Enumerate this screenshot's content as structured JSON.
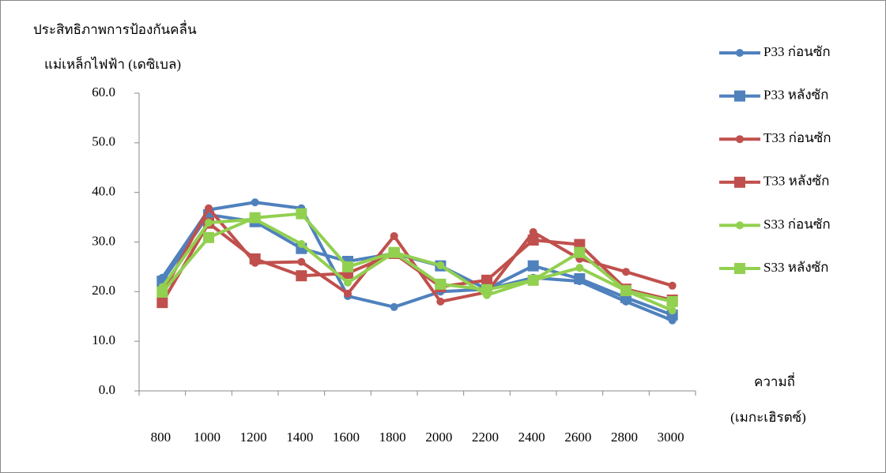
{
  "chart_data": {
    "type": "line",
    "ylabel": [
      "ประสิทธิภาพการป้องกันคลื่น",
      "แม่เหล็กไฟฟ้า (เดซิเบล)"
    ],
    "xlabel": [
      "ความถี่",
      "(เมกะเฮิรตซ์)"
    ],
    "categories": [
      "800",
      "1000",
      "1200",
      "1400",
      "1600",
      "1800",
      "2000",
      "2200",
      "2400",
      "2600",
      "2800",
      "3000"
    ],
    "ylim": [
      0,
      60
    ],
    "yticks": [
      {
        "value": 0,
        "label": "0.0"
      },
      {
        "value": 10,
        "label": "10.0"
      },
      {
        "value": 20,
        "label": "20.0"
      },
      {
        "value": 30,
        "label": "30.0"
      },
      {
        "value": 40,
        "label": "40.0"
      },
      {
        "value": 50,
        "label": "50.0"
      },
      {
        "value": 60,
        "label": "60.0"
      }
    ],
    "grid": false,
    "legend": "right",
    "series": [
      {
        "name": "P33 ก่อนซัก",
        "color": "#4f81bd",
        "marker": "circle",
        "values": [
          22.8,
          36.5,
          38.0,
          36.8,
          19.1,
          16.9,
          20.0,
          20.5,
          22.8,
          22.1,
          18.0,
          14.2
        ]
      },
      {
        "name": "P33 หลังซัก",
        "color": "#4f81bd",
        "marker": "square",
        "values": [
          22.1,
          35.5,
          34.1,
          28.7,
          26.1,
          27.7,
          25.2,
          20.5,
          25.2,
          22.6,
          18.8,
          15.3
        ]
      },
      {
        "name": "T33 ก่อนซัก",
        "color": "#c0504d",
        "marker": "circle",
        "values": [
          19.6,
          36.8,
          25.8,
          26.0,
          19.6,
          31.2,
          18.0,
          19.9,
          32.0,
          26.6,
          24.0,
          21.2
        ]
      },
      {
        "name": "T33 หลังซัก",
        "color": "#c0504d",
        "marker": "square",
        "values": [
          17.8,
          33.8,
          26.6,
          23.2,
          23.7,
          27.7,
          21.0,
          22.3,
          30.4,
          29.5,
          20.5,
          18.3
        ]
      },
      {
        "name": "S33 ก่อนซัก",
        "color": "#92d050",
        "marker": "circle",
        "values": [
          20.9,
          33.9,
          34.6,
          29.6,
          21.8,
          27.9,
          25.3,
          19.3,
          22.3,
          24.8,
          20.2,
          16.2
        ]
      },
      {
        "name": "S33 หลังซัก",
        "color": "#92d050",
        "marker": "square",
        "values": [
          19.9,
          30.9,
          34.9,
          35.7,
          25.0,
          27.9,
          21.5,
          20.4,
          22.3,
          27.9,
          20.2,
          18.0
        ]
      }
    ]
  }
}
